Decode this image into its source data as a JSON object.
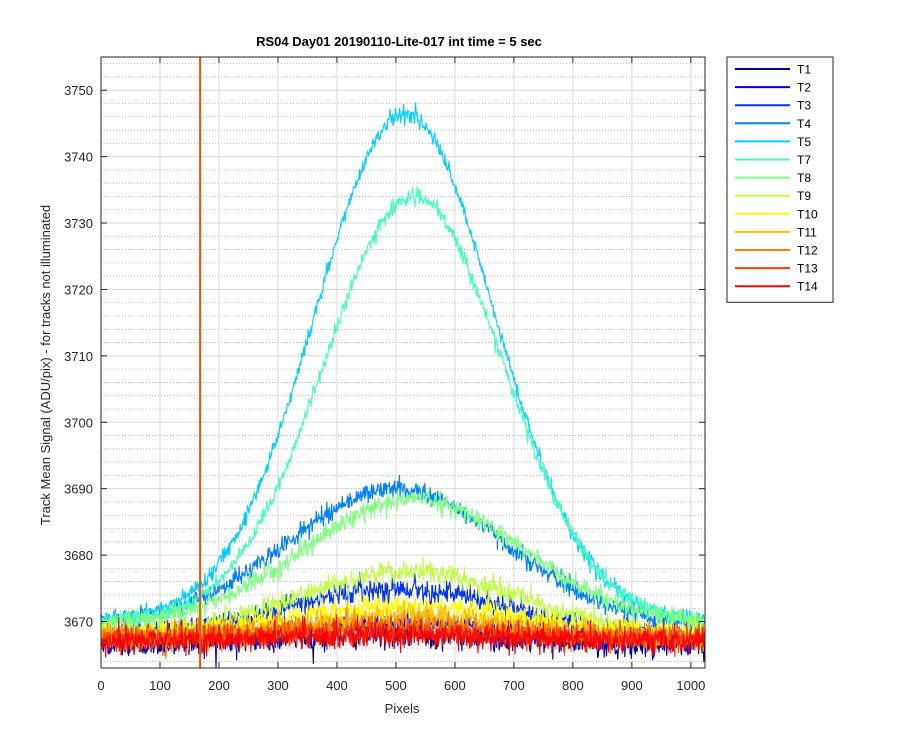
{
  "chart_data": {
    "type": "line",
    "title": "RS04 Day01 20190110-Lite-017 int time = 5 sec",
    "xlabel": "Pixels",
    "ylabel": "Track Mean Signal (ADU/pix) - for tracks not illuminated",
    "xlim": [
      0,
      1024
    ],
    "ylim": [
      3663,
      3755
    ],
    "xticks": [
      0,
      100,
      200,
      300,
      400,
      500,
      600,
      700,
      800,
      900,
      1000
    ],
    "yticks": [
      3670,
      3680,
      3690,
      3700,
      3710,
      3720,
      3730,
      3740,
      3750
    ],
    "minor_y_step": 2,
    "grid": true,
    "legend_position": "outside-top-right",
    "vertical_line": {
      "x": 168,
      "color": "#ff4d00"
    },
    "series": [
      {
        "name": "T1",
        "color": "#00008f",
        "baseline": 3666.5,
        "peak": 3668.0,
        "center": 500,
        "width": 260,
        "noise": 1.6
      },
      {
        "name": "T2",
        "color": "#0000df",
        "baseline": 3667.0,
        "peak": 3669.5,
        "center": 500,
        "width": 260,
        "noise": 1.6
      },
      {
        "name": "T3",
        "color": "#0030ff",
        "baseline": 3668.0,
        "peak": 3675.0,
        "center": 500,
        "width": 260,
        "noise": 1.5
      },
      {
        "name": "T4",
        "color": "#0080ff",
        "baseline": 3669.5,
        "peak": 3690.0,
        "center": 500,
        "width": 260,
        "noise": 1.2
      },
      {
        "name": "T5",
        "color": "#00cfff",
        "baseline": 3670.0,
        "peak": 3746.5,
        "center": 515,
        "width": 215,
        "noise": 1.0
      },
      {
        "name": "T7",
        "color": "#40ffbf",
        "baseline": 3670.0,
        "peak": 3734.0,
        "center": 530,
        "width": 215,
        "noise": 1.0
      },
      {
        "name": "T8",
        "color": "#80ff80",
        "baseline": 3669.5,
        "peak": 3688.5,
        "center": 530,
        "width": 260,
        "noise": 1.2
      },
      {
        "name": "T9",
        "color": "#bfff40",
        "baseline": 3668.0,
        "peak": 3677.5,
        "center": 520,
        "width": 260,
        "noise": 1.4
      },
      {
        "name": "T10",
        "color": "#ffff00",
        "baseline": 3668.0,
        "peak": 3672.5,
        "center": 520,
        "width": 260,
        "noise": 1.5
      },
      {
        "name": "T11",
        "color": "#ffbf00",
        "baseline": 3667.5,
        "peak": 3671.0,
        "center": 520,
        "width": 260,
        "noise": 1.6
      },
      {
        "name": "T12",
        "color": "#ff8000",
        "baseline": 3667.5,
        "peak": 3669.5,
        "center": 500,
        "width": 260,
        "noise": 1.6
      },
      {
        "name": "T13",
        "color": "#ff4000",
        "baseline": 3667.5,
        "peak": 3668.5,
        "center": 500,
        "width": 260,
        "noise": 1.6
      },
      {
        "name": "T14",
        "color": "#ff0000",
        "baseline": 3667.0,
        "peak": 3668.0,
        "center": 500,
        "width": 260,
        "noise": 1.6
      }
    ]
  }
}
